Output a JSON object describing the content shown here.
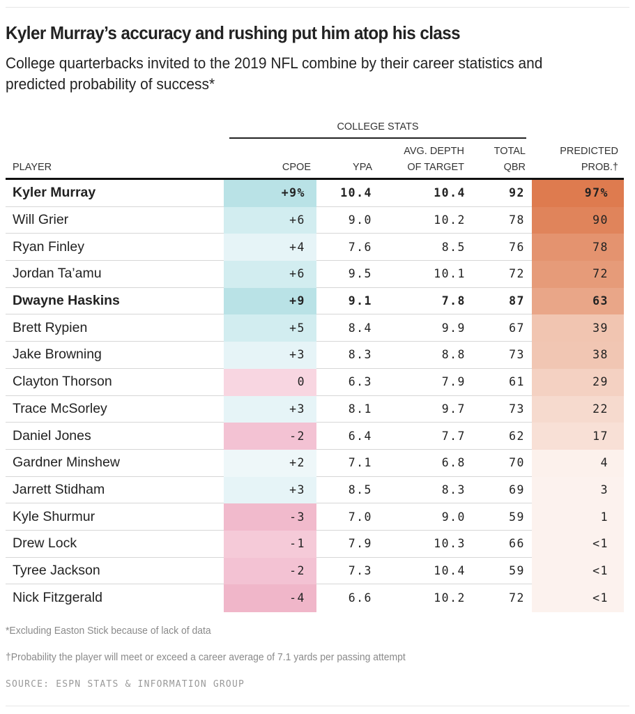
{
  "title": "Kyler Murray’s accuracy and rushing put him atop his class",
  "subtitle": "College quarterbacks invited to the 2019 NFL combine by their career statistics and predicted probability of success*",
  "group_header": "COLLEGE STATS",
  "headers": {
    "player": "PLAYER",
    "cpoe": "CPOE",
    "ypa": "YPA",
    "depth_line1": "AVG. DEPTH",
    "depth_line2": "OF TARGET",
    "qbr_line1": "TOTAL",
    "qbr_line2": "QBR",
    "prob_line1": "PREDICTED",
    "prob_line2": "PROB.†"
  },
  "colors": {
    "cpoe_pos_strong": "#b9e2e6",
    "cpoe_pos_mid": "#d2edf0",
    "cpoe_pos_light": "#e6f4f7",
    "cpoe_pos_faint": "#eef7f9",
    "cpoe_zero": "#f8d6e1",
    "cpoe_neg": "#f2bccd",
    "prob_max": "#de7b4f"
  },
  "chart_data": {
    "type": "table",
    "title": "Kyler Murray’s accuracy and rushing put him atop his class",
    "columns": [
      "PLAYER",
      "CPOE",
      "YPA",
      "AVG. DEPTH OF TARGET",
      "TOTAL QBR",
      "PREDICTED PROB.†"
    ],
    "rows": [
      {
        "player": "Kyler Murray",
        "cpoe": "+9%",
        "cpoe_value": 9,
        "ypa": "10.4",
        "depth": "10.4",
        "qbr": "92",
        "prob": "97%",
        "prob_value": 97,
        "bold": true
      },
      {
        "player": "Will Grier",
        "cpoe": "+6",
        "cpoe_value": 6,
        "ypa": "9.0",
        "depth": "10.2",
        "qbr": "78",
        "prob": "90",
        "prob_value": 90,
        "bold": false
      },
      {
        "player": "Ryan Finley",
        "cpoe": "+4",
        "cpoe_value": 4,
        "ypa": "7.6",
        "depth": "8.5",
        "qbr": "76",
        "prob": "78",
        "prob_value": 78,
        "bold": false
      },
      {
        "player": "Jordan Ta’amu",
        "cpoe": "+6",
        "cpoe_value": 6,
        "ypa": "9.5",
        "depth": "10.1",
        "qbr": "72",
        "prob": "72",
        "prob_value": 72,
        "bold": false
      },
      {
        "player": "Dwayne Haskins",
        "cpoe": "+9",
        "cpoe_value": 9,
        "ypa": "9.1",
        "depth": "7.8",
        "qbr": "87",
        "prob": "63",
        "prob_value": 63,
        "bold": true
      },
      {
        "player": "Brett Rypien",
        "cpoe": "+5",
        "cpoe_value": 5,
        "ypa": "8.4",
        "depth": "9.9",
        "qbr": "67",
        "prob": "39",
        "prob_value": 39,
        "bold": false
      },
      {
        "player": "Jake Browning",
        "cpoe": "+3",
        "cpoe_value": 3,
        "ypa": "8.3",
        "depth": "8.8",
        "qbr": "73",
        "prob": "38",
        "prob_value": 38,
        "bold": false
      },
      {
        "player": "Clayton Thorson",
        "cpoe": "0",
        "cpoe_value": 0,
        "ypa": "6.3",
        "depth": "7.9",
        "qbr": "61",
        "prob": "29",
        "prob_value": 29,
        "bold": false
      },
      {
        "player": "Trace McSorley",
        "cpoe": "+3",
        "cpoe_value": 3,
        "ypa": "8.1",
        "depth": "9.7",
        "qbr": "73",
        "prob": "22",
        "prob_value": 22,
        "bold": false
      },
      {
        "player": "Daniel Jones",
        "cpoe": "-2",
        "cpoe_value": -2,
        "ypa": "6.4",
        "depth": "7.7",
        "qbr": "62",
        "prob": "17",
        "prob_value": 17,
        "bold": false
      },
      {
        "player": "Gardner Minshew",
        "cpoe": "+2",
        "cpoe_value": 2,
        "ypa": "7.1",
        "depth": "6.8",
        "qbr": "70",
        "prob": "4",
        "prob_value": 4,
        "bold": false
      },
      {
        "player": "Jarrett Stidham",
        "cpoe": "+3",
        "cpoe_value": 3,
        "ypa": "8.5",
        "depth": "8.3",
        "qbr": "69",
        "prob": "3",
        "prob_value": 3,
        "bold": false
      },
      {
        "player": "Kyle Shurmur",
        "cpoe": "-3",
        "cpoe_value": -3,
        "ypa": "7.0",
        "depth": "9.0",
        "qbr": "59",
        "prob": "1",
        "prob_value": 1,
        "bold": false
      },
      {
        "player": "Drew Lock",
        "cpoe": "-1",
        "cpoe_value": -1,
        "ypa": "7.9",
        "depth": "10.3",
        "qbr": "66",
        "prob": "<1",
        "prob_value": 0.5,
        "bold": false
      },
      {
        "player": "Tyree Jackson",
        "cpoe": "-2",
        "cpoe_value": -2,
        "ypa": "7.3",
        "depth": "10.4",
        "qbr": "59",
        "prob": "<1",
        "prob_value": 0.5,
        "bold": false
      },
      {
        "player": "Nick Fitzgerald",
        "cpoe": "-4",
        "cpoe_value": -4,
        "ypa": "6.6",
        "depth": "10.2",
        "qbr": "72",
        "prob": "<1",
        "prob_value": 0.5,
        "bold": false
      }
    ]
  },
  "notes": {
    "note1": "*Excluding Easton Stick because of lack of data",
    "note2": "†Probability the player will meet or exceed a career average of 7.1 yards per passing attempt",
    "source": "SOURCE: ESPN STATS & INFORMATION GROUP"
  }
}
